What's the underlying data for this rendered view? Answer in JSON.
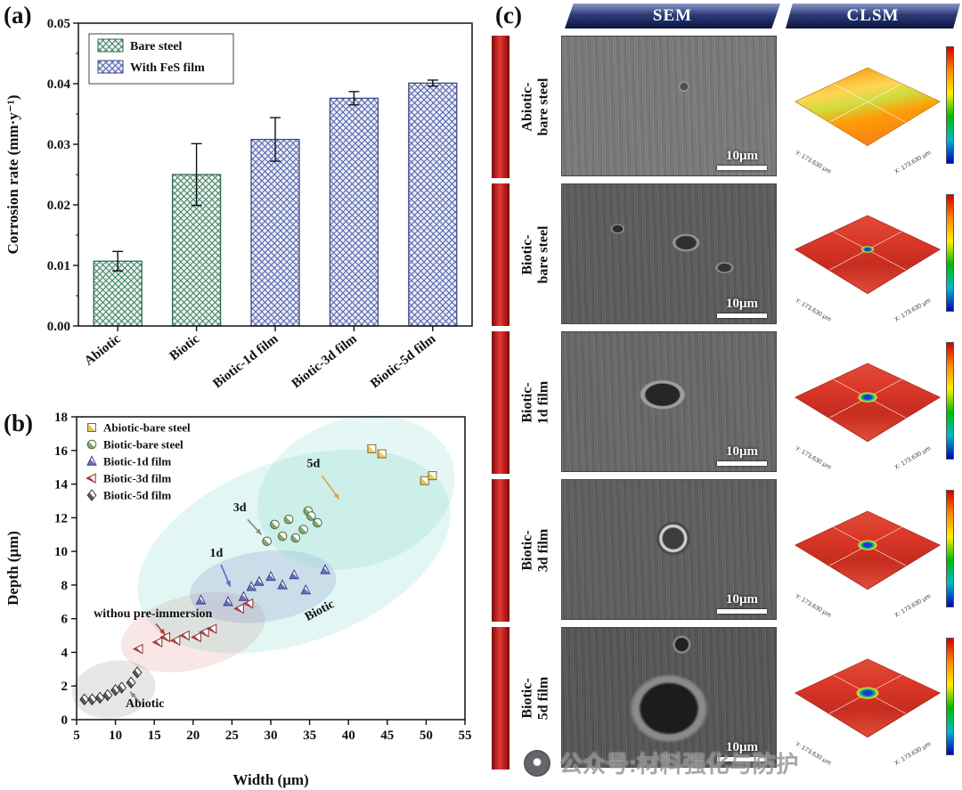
{
  "panels": {
    "a": {
      "label": "(a)"
    },
    "b": {
      "label": "(b)"
    },
    "c": {
      "label": "(c)"
    }
  },
  "chart_data": [
    {
      "panel": "a",
      "type": "bar",
      "title": "",
      "categories": [
        "Abiotic",
        "Biotic",
        "Biotic-1d film",
        "Biotic-3d film",
        "Biotic-5d film"
      ],
      "values": [
        0.0107,
        0.025,
        0.0308,
        0.0376,
        0.0401
      ],
      "errors": [
        0.0016,
        0.0051,
        0.0036,
        0.0011,
        0.0005
      ],
      "groups": [
        "Bare steel",
        "Bare steel",
        "With FeS film",
        "With FeS film",
        "With FeS film"
      ],
      "legend": [
        {
          "label": "Bare steel",
          "fill": "#eef5ee",
          "hatch": "#3e7d66",
          "edge": "#2f6b52"
        },
        {
          "label": "With FeS film",
          "fill": "#eceef7",
          "hatch": "#4f5fa8",
          "edge": "#3d4c85"
        }
      ],
      "xlabel": "",
      "ylabel": "Corrosion rate (mm·y⁻¹)",
      "ylim": [
        0,
        0.05
      ],
      "yticks": [
        "0.00",
        "0.01",
        "0.02",
        "0.03",
        "0.04",
        "0.05"
      ],
      "grid": false,
      "legend_position": "top-left"
    },
    {
      "panel": "b",
      "type": "scatter",
      "title": "",
      "xlabel": "Width (μm)",
      "ylabel": "Depth (μm)",
      "xlim": [
        5,
        55
      ],
      "ylim": [
        0,
        18
      ],
      "xticks": [
        5,
        10,
        15,
        20,
        25,
        30,
        35,
        40,
        45,
        50,
        55
      ],
      "yticks": [
        0,
        2,
        4,
        6,
        8,
        10,
        12,
        14,
        16,
        18
      ],
      "grid": false,
      "legend_position": "top-left",
      "series": [
        {
          "name": "Abiotic-bare steel",
          "marker": "square",
          "color": "#e9c46a",
          "edge": "#8a6a1f",
          "points": [
            [
              43,
              16.1
            ],
            [
              44.3,
              15.8
            ],
            [
              49.8,
              14.2
            ],
            [
              50.8,
              14.5
            ]
          ]
        },
        {
          "name": "Biotic-bare steel",
          "marker": "circle",
          "color": "#86a873",
          "edge": "#4e6b3f",
          "points": [
            [
              29.5,
              10.6
            ],
            [
              30.5,
              11.6
            ],
            [
              31.5,
              10.9
            ],
            [
              32.3,
              11.9
            ],
            [
              33.2,
              10.8
            ],
            [
              34.2,
              11.3
            ],
            [
              34.8,
              12.4
            ],
            [
              35.2,
              12.1
            ],
            [
              36,
              11.7
            ]
          ]
        },
        {
          "name": "Biotic-1d film",
          "marker": "triangle-up",
          "color": "#6f6fbe",
          "edge": "#3f3f8a",
          "points": [
            [
              21,
              7.1
            ],
            [
              24.5,
              7.0
            ],
            [
              26.5,
              7.3
            ],
            [
              27.5,
              7.9
            ],
            [
              28.5,
              8.2
            ],
            [
              30,
              8.5
            ],
            [
              31.5,
              8.0
            ],
            [
              33,
              8.6
            ],
            [
              34.5,
              7.7
            ],
            [
              37,
              8.9
            ]
          ]
        },
        {
          "name": "Biotic-3d film",
          "marker": "triangle-left",
          "color": "#c05050",
          "edge": "#8a2f2f",
          "points": [
            [
              13,
              4.2
            ],
            [
              15.5,
              4.6
            ],
            [
              16.5,
              4.9
            ],
            [
              17.8,
              4.7
            ],
            [
              19,
              5.0
            ],
            [
              20.5,
              4.9
            ],
            [
              21.5,
              5.2
            ],
            [
              22.5,
              5.4
            ],
            [
              26,
              6.6
            ],
            [
              27.2,
              6.9
            ]
          ]
        },
        {
          "name": "Biotic-5d film",
          "marker": "diamond",
          "color": "#5b5b5b",
          "edge": "#2f2f2f",
          "points": [
            [
              6,
              1.2
            ],
            [
              7,
              1.2
            ],
            [
              8,
              1.3
            ],
            [
              9,
              1.45
            ],
            [
              10,
              1.75
            ],
            [
              10.8,
              1.9
            ],
            [
              12,
              2.2
            ],
            [
              12.8,
              2.8
            ]
          ]
        }
      ],
      "ellipses": [
        {
          "cx": 9.8,
          "cy": 1.8,
          "rx": 5.4,
          "ry": 1.7,
          "rot": -10,
          "color": "#aaaaaa",
          "opacity": 0.28
        },
        {
          "cx": 20,
          "cy": 5.2,
          "rx": 9.5,
          "ry": 2.2,
          "rot": -14,
          "color": "#e08080",
          "opacity": 0.2
        },
        {
          "cx": 29,
          "cy": 7.9,
          "rx": 9.5,
          "ry": 2.1,
          "rot": -8,
          "color": "#8080d0",
          "opacity": 0.22
        },
        {
          "cx": 33,
          "cy": 10,
          "rx": 21,
          "ry": 5.4,
          "rot": -20,
          "color": "#49c5b6",
          "opacity": 0.16
        },
        {
          "cx": 41,
          "cy": 13.5,
          "rx": 13,
          "ry": 4.4,
          "rot": -18,
          "color": "#7fd8c8",
          "opacity": 0.2
        }
      ],
      "annotations": [
        {
          "text": "5d",
          "color": "#e8a33a",
          "x": 35.5,
          "y": 15.0,
          "anchor": "middle",
          "ax": 36.6,
          "ay": 14.5,
          "tx": 38.8,
          "ty": 13.1
        },
        {
          "text": "3d",
          "color": "#8a8a7a",
          "x": 26,
          "y": 12.4,
          "anchor": "middle",
          "ax": 27,
          "ay": 11.9,
          "tx": 28.8,
          "ty": 11.0
        },
        {
          "text": "1d",
          "color": "#5b6bc0",
          "x": 23,
          "y": 9.7,
          "anchor": "middle",
          "ax": 23.6,
          "ay": 9.2,
          "tx": 24.8,
          "ty": 7.9
        },
        {
          "text": "withou pre-immersion",
          "color": "#c0392b",
          "x": 7.2,
          "y": 6.1,
          "anchor": "start",
          "ax": 15.2,
          "ay": 5.7,
          "tx": 16.4,
          "ty": 5.05
        },
        {
          "text": "Biotic",
          "color": "#18c5c5",
          "x": 36.5,
          "y": 6.3,
          "anchor": "middle",
          "rot": -28
        },
        {
          "text": "Abiotic",
          "color": "#888888",
          "x": 13.8,
          "y": 0.75,
          "anchor": "middle",
          "ax": 13,
          "ay": 1.1,
          "tx": 11.9,
          "ty": 1.65
        }
      ]
    }
  ],
  "panel_c": {
    "column_headers": [
      "SEM",
      "CLSM"
    ],
    "rows": [
      {
        "label": "Abiotic-\nbare steel",
        "sem_scale": "10μm"
      },
      {
        "label": "Biotic-\nbare steel",
        "sem_scale": "10μm"
      },
      {
        "label": "Biotic-\n1d film",
        "sem_scale": "10μm"
      },
      {
        "label": "Biotic-\n3d film",
        "sem_scale": "10μm"
      },
      {
        "label": "Biotic-\n5d film",
        "sem_scale": "10μm"
      }
    ],
    "clsm_axis_x": "X: 173.630 μm",
    "clsm_axis_y": "Y: 173.630 μm"
  },
  "watermark": {
    "text": "公众号:材料强化与防护"
  }
}
